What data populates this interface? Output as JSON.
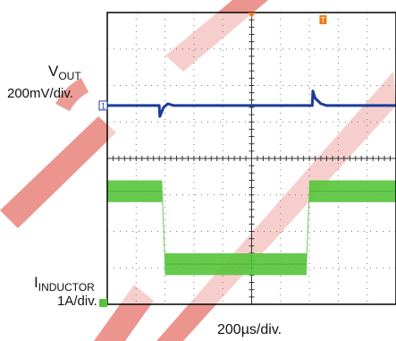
{
  "labels": {
    "vout_main": "V",
    "vout_sub": "OUT",
    "vout_scale": "200mV/div.",
    "iind_main": "I",
    "iind_sub": "INDUCTOR",
    "iind_scale": "1A/div.",
    "time_scale": "200µs/div."
  },
  "markers": {
    "ch1": "1",
    "trigger": "T"
  },
  "colors": {
    "vout_trace": "#1b3c9a",
    "iind_trace": "#55c43a",
    "trigger_marker": "#f07a18",
    "grid": "#777777",
    "frame": "#000000",
    "watermark": "#e8837a"
  },
  "chart_data": {
    "type": "line",
    "title": "",
    "xlabel": "200µs/div.",
    "grid": true,
    "x_divisions": 10,
    "y_divisions": 8,
    "series": [
      {
        "name": "VOUT",
        "scale": "200mV/div.",
        "x_div": [
          0,
          1.8,
          1.82,
          1.95,
          2.1,
          2.3,
          7.1,
          7.12,
          7.2,
          7.4,
          7.6,
          10
        ],
        "y_div": [
          2.55,
          2.55,
          2.85,
          2.6,
          2.5,
          2.55,
          2.55,
          2.15,
          2.35,
          2.5,
          2.55,
          2.55
        ]
      },
      {
        "name": "IINDUCTOR",
        "scale": "1A/div.",
        "x_div": [
          0,
          1.9,
          2.0,
          6.9,
          7.0,
          10
        ],
        "y_div": [
          4.9,
          4.9,
          6.9,
          6.9,
          4.9,
          4.9
        ],
        "band_div": 0.6
      }
    ]
  }
}
